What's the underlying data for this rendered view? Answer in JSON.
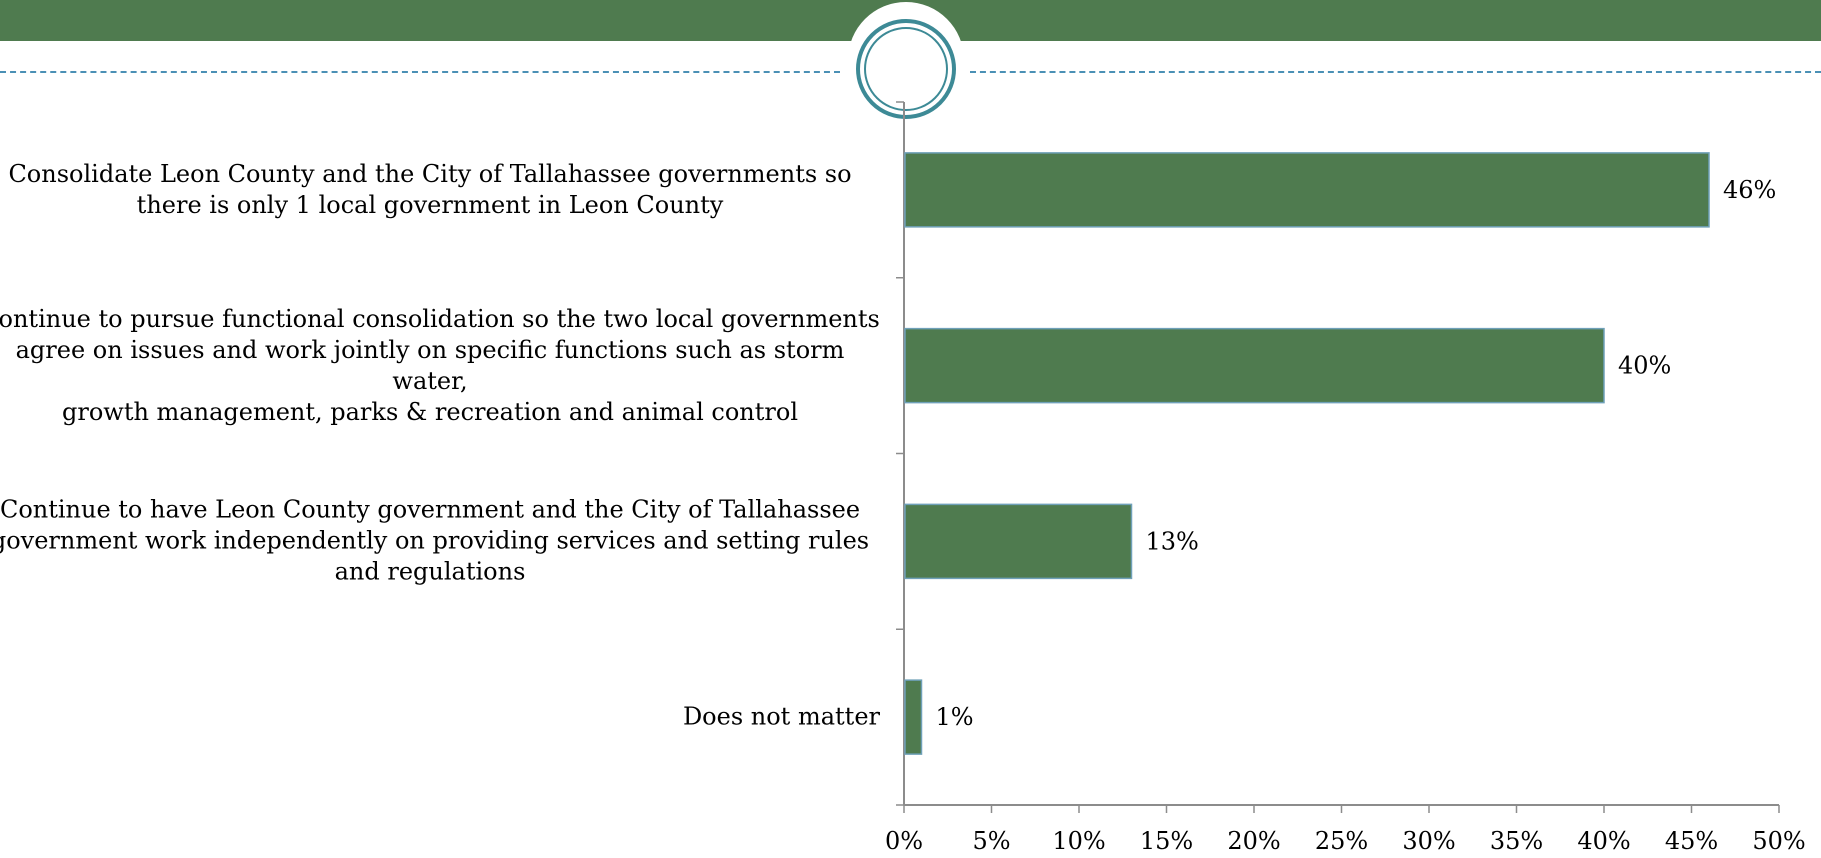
{
  "colors": {
    "band": "#4f7b4f",
    "bar_fill": "#4f7b4f",
    "bar_stroke": "#6fa0b8",
    "axis": "#8c8c8c",
    "dash": "#4a90b5",
    "ring": "#3d8a96"
  },
  "chart_data": {
    "type": "bar",
    "orientation": "horizontal",
    "title": "",
    "xlabel": "",
    "ylabel": "",
    "xlim": [
      0,
      50
    ],
    "x_ticks": [
      "0%",
      "5%",
      "10%",
      "15%",
      "20%",
      "25%",
      "30%",
      "35%",
      "40%",
      "45%",
      "50%"
    ],
    "grid": false,
    "legend": "none",
    "categories": [
      [
        "Consolidate Leon County and the City of Tallahassee governments so",
        "there is only 1 local government in Leon County"
      ],
      [
        "Continue to pursue functional consolidation so the two local governments",
        "agree on issues and work jointly on specific functions such as storm water,",
        "growth management, parks & recreation and animal control"
      ],
      [
        "Continue to have Leon County government and the City of Tallahassee",
        "government work independently on providing services and setting rules",
        "and regulations"
      ],
      [
        "Does not matter"
      ]
    ],
    "values": [
      46,
      40,
      13,
      1
    ],
    "value_labels": [
      "46%",
      "40%",
      "13%",
      "1%"
    ]
  }
}
